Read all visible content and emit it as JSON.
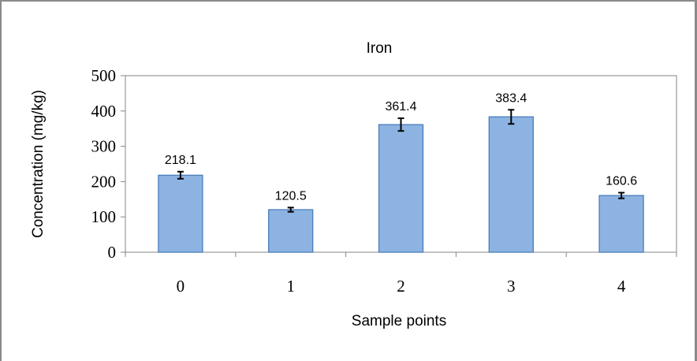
{
  "chart_data": {
    "type": "bar",
    "title": "Iron",
    "xlabel": "Sample points",
    "ylabel": "Concentration  (mg/kg)",
    "categories": [
      "0",
      "1",
      "2",
      "3",
      "4"
    ],
    "values": [
      218.1,
      120.5,
      361.4,
      383.4,
      160.6
    ],
    "data_labels": [
      "218.1",
      "120.5",
      "361.4",
      "383.4",
      "160.6"
    ],
    "error_bars": [
      10,
      6,
      18,
      20,
      8
    ],
    "ylim": [
      0,
      500
    ],
    "yticks": [
      "0",
      "100",
      "200",
      "300",
      "400",
      "500"
    ],
    "grid": false,
    "legend": "none",
    "colors": {
      "bar_fill": "#8db3e2",
      "bar_stroke": "#4a7ebb",
      "axis": "#868686",
      "error": "#000000"
    }
  }
}
